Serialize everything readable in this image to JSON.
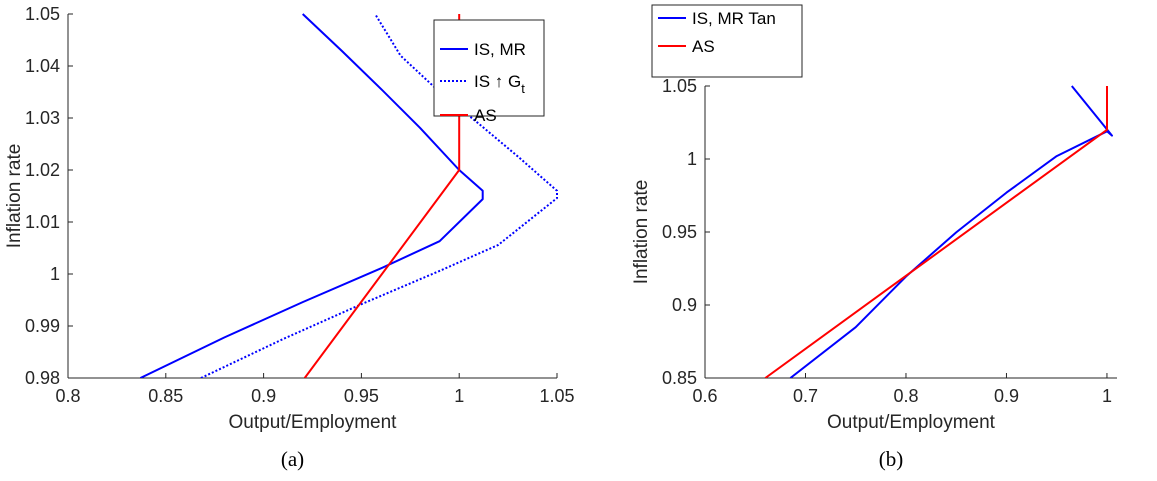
{
  "chart_data": [
    {
      "type": "line",
      "caption": "(a)",
      "xlabel": "Output/Employment",
      "ylabel": "Inflation rate",
      "xlim": [
        0.8,
        1.05
      ],
      "ylim": [
        0.98,
        1.05
      ],
      "xticks": [
        "0.8",
        "0.85",
        "0.9",
        "0.95",
        "1",
        "1.05"
      ],
      "yticks": [
        "0.98",
        "0.99",
        "1",
        "1.01",
        "1.02",
        "1.03",
        "1.04",
        "1.05"
      ],
      "grid": false,
      "legend_position": "top-right",
      "series": [
        {
          "name": "IS, MR",
          "color": "#0000ff",
          "dash": "solid",
          "x": [
            0.837,
            0.88,
            0.92,
            0.96,
            0.99,
            1.012,
            1.012,
            1.0,
            0.98,
            0.96,
            0.94,
            0.92
          ],
          "y": [
            0.98,
            0.9878,
            0.9946,
            1.0011,
            1.0063,
            1.0144,
            1.016,
            1.02,
            1.0281,
            1.0356,
            1.0429,
            1.05
          ]
        },
        {
          "name": "IS ↑ G",
          "name_sub": "t",
          "color": "#0000ff",
          "dash": "dotted",
          "x": [
            0.868,
            0.91,
            0.95,
            0.99,
            1.02,
            1.05,
            1.05,
            1.03,
            1.01,
            0.99,
            0.97,
            0.957
          ],
          "y": [
            0.98,
            0.9875,
            0.9942,
            1.0006,
            1.0056,
            1.0146,
            1.016,
            1.0226,
            1.0289,
            1.035,
            1.042,
            1.05
          ]
        },
        {
          "name": "AS",
          "color": "#ff0000",
          "dash": "solid",
          "x": [
            0.921,
            1.0,
            1.0
          ],
          "y": [
            0.98,
            1.02,
            1.05
          ]
        }
      ]
    },
    {
      "type": "line",
      "caption": "(b)",
      "xlabel": "Output/Employment",
      "ylabel": "Inflation rate",
      "xlim": [
        0.6,
        1.01
      ],
      "ylim": [
        0.85,
        1.05
      ],
      "xticks": [
        "0.6",
        "0.7",
        "0.8",
        "0.9",
        "1"
      ],
      "yticks": [
        "0.85",
        "0.9",
        "0.95",
        "1",
        "1.05"
      ],
      "grid": false,
      "legend_position": "top-left-outside",
      "series": [
        {
          "name": "IS, MR Tan",
          "color": "#0000ff",
          "dash": "solid",
          "x": [
            0.685,
            0.75,
            0.8,
            0.85,
            0.9,
            0.95,
            1.0,
            1.005,
            0.965
          ],
          "y": [
            0.85,
            0.8848,
            0.9195,
            0.9497,
            0.977,
            1.002,
            1.019,
            1.016,
            1.05
          ]
        },
        {
          "name": "AS",
          "color": "#ff0000",
          "dash": "solid",
          "x": [
            0.66,
            1.0,
            1.0
          ],
          "y": [
            0.85,
            1.02,
            1.05
          ]
        }
      ]
    }
  ]
}
